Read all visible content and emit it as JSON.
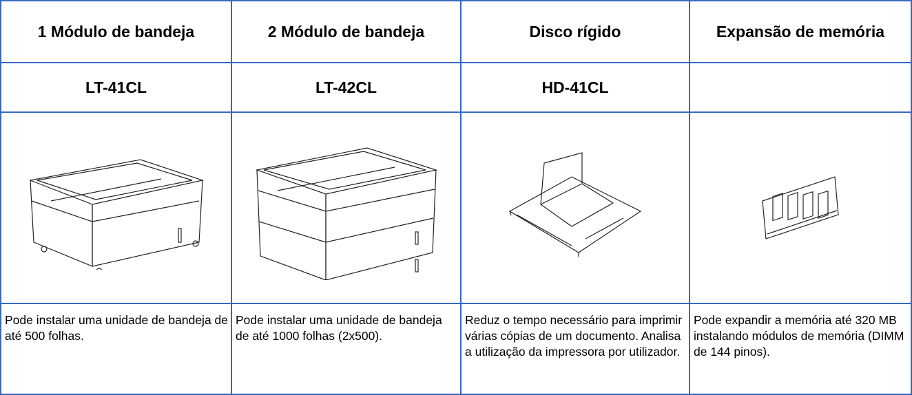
{
  "table": {
    "headers": [
      "1 Módulo de bandeja",
      "2 Módulo de bandeja",
      "Disco rígido",
      "Expansão de memória"
    ],
    "models": [
      "LT-41CL",
      "LT-42CL",
      "HD-41CL"
    ],
    "descriptions": [
      "Pode instalar uma unidade de bandeja de até 500 folhas.",
      "Pode instalar uma unidade de bandeja de até 1000 folhas (2x500).",
      "Reduz o tempo necessário para imprimir várias cópias de um documento. Analisa a utilização da impressora por utilizador.",
      "Pode expandir a memória até 320 MB instalando módulos de memória (DIMM de 144 pinos)."
    ]
  }
}
